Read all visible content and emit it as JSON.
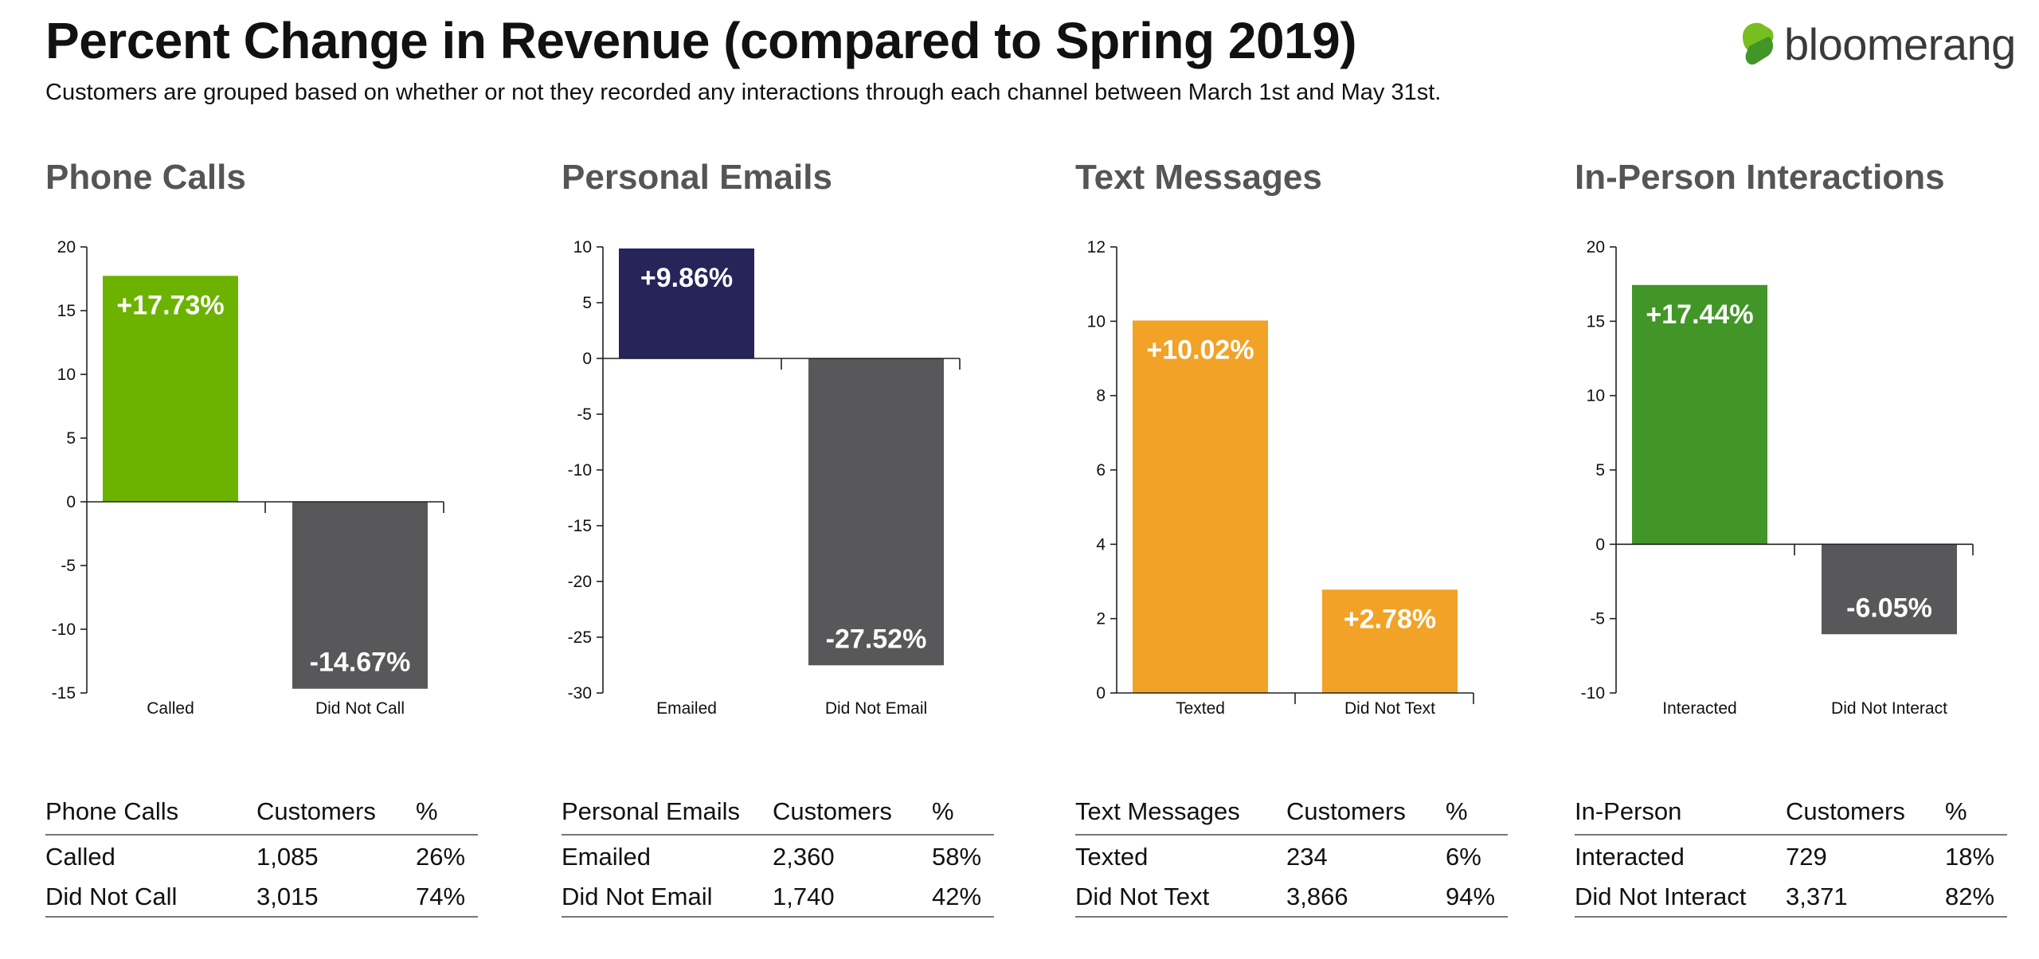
{
  "header": {
    "title": "Percent Change in Revenue (compared to Spring 2019)",
    "subtitle": "Customers are grouped based on whether or not they recorded any interactions through each channel between March 1st and May 31st.",
    "logo_text": "bloomerang"
  },
  "colors": {
    "phone_called": "#6cb300",
    "email_emailed": "#27245a",
    "text_bars": "#f2a227",
    "inperson_interacted": "#419627",
    "did_not_gray": "#58585a"
  },
  "chart_data": [
    {
      "type": "bar",
      "title": "Phone Calls",
      "categories": [
        "Called",
        "Did Not Call"
      ],
      "values": [
        17.73,
        -14.67
      ],
      "labels": [
        "+17.73%",
        "-14.67%"
      ],
      "colors": [
        "#6cb300",
        "#58585a"
      ],
      "ylim": [
        -15,
        20
      ],
      "yticks": [
        20,
        15,
        10,
        5,
        0,
        -5,
        -10,
        -15
      ],
      "xlabel": "",
      "ylabel": "",
      "grid": false
    },
    {
      "type": "bar",
      "title": "Personal Emails",
      "categories": [
        "Emailed",
        "Did Not Email"
      ],
      "values": [
        9.86,
        -27.52
      ],
      "labels": [
        "+9.86%",
        "-27.52%"
      ],
      "colors": [
        "#27245a",
        "#58585a"
      ],
      "ylim": [
        -30,
        10
      ],
      "yticks": [
        10,
        5,
        0,
        -5,
        -10,
        -15,
        -20,
        -25,
        -30
      ],
      "xlabel": "",
      "ylabel": "",
      "grid": false
    },
    {
      "type": "bar",
      "title": "Text Messages",
      "categories": [
        "Texted",
        "Did Not Text"
      ],
      "values": [
        10.02,
        2.78
      ],
      "labels": [
        "+10.02%",
        "+2.78%"
      ],
      "colors": [
        "#f2a227",
        "#f2a227"
      ],
      "ylim": [
        0,
        12
      ],
      "yticks": [
        12,
        10,
        8,
        6,
        4,
        2,
        0
      ],
      "xlabel": "",
      "ylabel": "",
      "grid": false
    },
    {
      "type": "bar",
      "title": "In-Person Interactions",
      "categories": [
        "Interacted",
        "Did Not Interact"
      ],
      "values": [
        17.44,
        -6.05
      ],
      "labels": [
        "+17.44%",
        "-6.05%"
      ],
      "colors": [
        "#419627",
        "#58585a"
      ],
      "ylim": [
        -10,
        20
      ],
      "yticks": [
        20,
        15,
        10,
        5,
        0,
        -5,
        -10
      ],
      "xlabel": "",
      "ylabel": "",
      "grid": false
    }
  ],
  "tables": [
    {
      "headers": [
        "Phone Calls",
        "Customers",
        "%"
      ],
      "rows": [
        [
          "Called",
          "1,085",
          "26%"
        ],
        [
          "Did Not Call",
          "3,015",
          "74%"
        ]
      ]
    },
    {
      "headers": [
        "Personal Emails",
        "Customers",
        "%"
      ],
      "rows": [
        [
          "Emailed",
          "2,360",
          "58%"
        ],
        [
          "Did Not Email",
          "1,740",
          "42%"
        ]
      ]
    },
    {
      "headers": [
        "Text Messages",
        "Customers",
        "%"
      ],
      "rows": [
        [
          "Texted",
          "234",
          "6%"
        ],
        [
          "Did Not Text",
          "3,866",
          "94%"
        ]
      ]
    },
    {
      "headers": [
        "In-Person",
        "Customers",
        "%"
      ],
      "rows": [
        [
          "Interacted",
          "729",
          "18%"
        ],
        [
          "Did Not Interact",
          "3,371",
          "82%"
        ]
      ]
    }
  ]
}
